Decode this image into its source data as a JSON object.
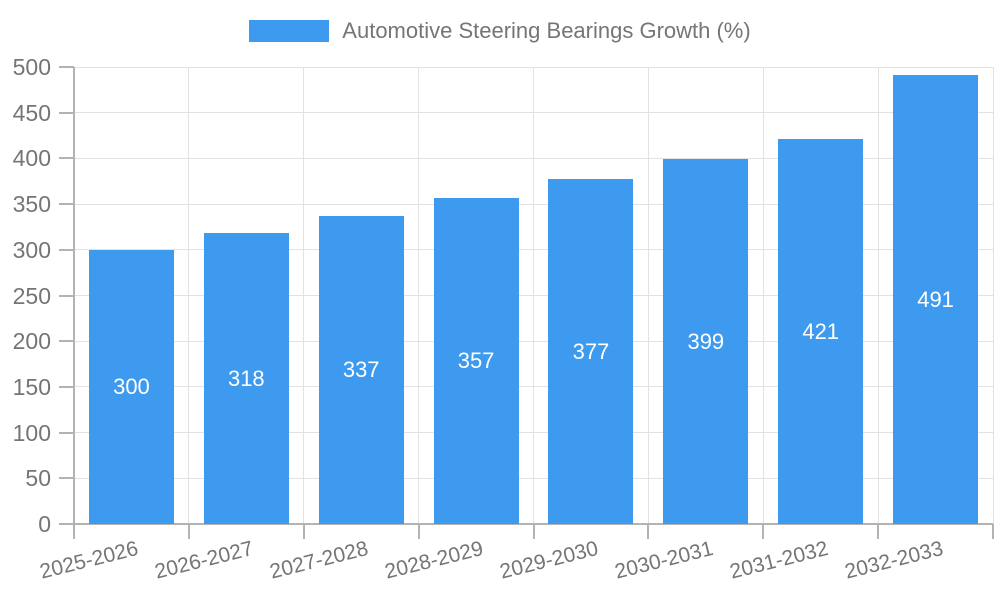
{
  "chart_data": {
    "type": "bar",
    "title": "Automotive Steering Bearings Growth (%)",
    "legend": [
      "Automotive Steering Bearings Growth (%)"
    ],
    "legend_position": "top",
    "categories": [
      "2025-2026",
      "2026-2027",
      "2027-2028",
      "2028-2029",
      "2029-2030",
      "2030-2031",
      "2031-2032",
      "2032-2033"
    ],
    "values": [
      300,
      318,
      337,
      357,
      377,
      399,
      421,
      491
    ],
    "xlabel": "",
    "ylabel": "",
    "ylim": [
      0,
      500
    ],
    "ytick_step": 50,
    "yticks": [
      0,
      50,
      100,
      150,
      200,
      250,
      300,
      350,
      400,
      450,
      500
    ],
    "grid": true,
    "bar_label_position": "inside-middle",
    "colors": {
      "bar": "#3D9AEE",
      "bar_label": "#FFFFFF",
      "axis_text": "#757575",
      "axis_line": "#B3B3B3",
      "gridline": "#E2E2E2",
      "background": "#FFFFFF"
    }
  }
}
